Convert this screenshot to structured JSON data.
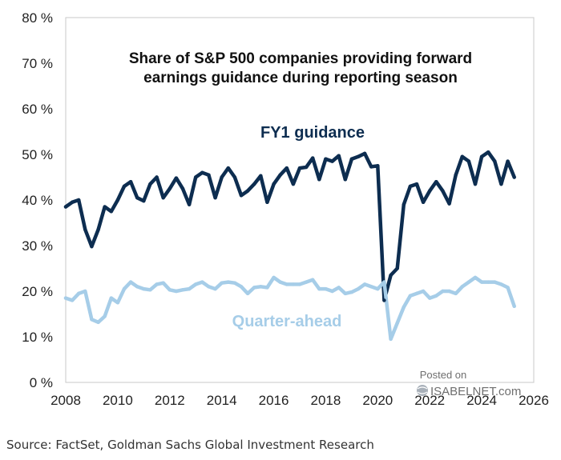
{
  "chart_data": {
    "type": "line",
    "title": [
      "Share of S&P 500 companies providing forward",
      "earnings guidance during reporting season"
    ],
    "xlabel": "",
    "ylabel": "",
    "xlim": [
      2008,
      2026
    ],
    "ylim": [
      0,
      80
    ],
    "x_ticks": [
      "2008",
      "2010",
      "2012",
      "2014",
      "2016",
      "2018",
      "2020",
      "2022",
      "2024",
      "2026"
    ],
    "y_ticks": [
      "0 %",
      "10 %",
      "20 %",
      "30 %",
      "40 %",
      "50 %",
      "60 %",
      "70 %",
      "80 %"
    ],
    "grid": false,
    "series": [
      {
        "name": "FY1 guidance",
        "color": "#0d2d50",
        "x": [
          2008.0,
          2008.25,
          2008.5,
          2008.75,
          2009.0,
          2009.25,
          2009.5,
          2009.75,
          2010.0,
          2010.25,
          2010.5,
          2010.75,
          2011.0,
          2011.25,
          2011.5,
          2011.75,
          2012.0,
          2012.25,
          2012.5,
          2012.75,
          2013.0,
          2013.25,
          2013.5,
          2013.75,
          2014.0,
          2014.25,
          2014.5,
          2014.75,
          2015.0,
          2015.25,
          2015.5,
          2015.75,
          2016.0,
          2016.25,
          2016.5,
          2016.75,
          2017.0,
          2017.25,
          2017.5,
          2017.75,
          2018.0,
          2018.25,
          2018.5,
          2018.75,
          2019.0,
          2019.25,
          2019.5,
          2019.75,
          2020.0,
          2020.25,
          2020.5,
          2020.75,
          2021.0,
          2021.25,
          2021.5,
          2021.75,
          2022.0,
          2022.25,
          2022.5,
          2022.75,
          2023.0,
          2023.25,
          2023.5,
          2023.75,
          2024.0,
          2024.25,
          2024.5,
          2024.75,
          2025.0,
          2025.25
        ],
        "values": [
          38.5,
          39.5,
          40.0,
          33.5,
          29.8,
          33.5,
          38.5,
          37.5,
          40.0,
          43.0,
          44.0,
          40.5,
          39.8,
          43.5,
          45.0,
          40.5,
          42.5,
          44.8,
          42.5,
          39.0,
          45.0,
          46.0,
          45.5,
          40.5,
          45.0,
          47.0,
          45.0,
          41.0,
          42.0,
          43.5,
          45.3,
          39.5,
          43.5,
          45.5,
          47.0,
          43.5,
          47.0,
          47.2,
          49.2,
          44.5,
          49.0,
          48.5,
          49.7,
          44.5,
          49.0,
          49.5,
          50.2,
          47.3,
          47.5,
          18.0,
          23.5,
          25.0,
          39.0,
          43.0,
          43.5,
          39.5,
          42.0,
          44.0,
          42.0,
          39.2,
          45.5,
          49.5,
          48.5,
          43.5,
          49.5,
          50.5,
          48.5,
          43.5,
          48.5,
          45.0
        ]
      },
      {
        "name": "Quarter-ahead",
        "color": "#a6cde8",
        "x": [
          2008.0,
          2008.25,
          2008.5,
          2008.75,
          2009.0,
          2009.25,
          2009.5,
          2009.75,
          2010.0,
          2010.25,
          2010.5,
          2010.75,
          2011.0,
          2011.25,
          2011.5,
          2011.75,
          2012.0,
          2012.25,
          2012.5,
          2012.75,
          2013.0,
          2013.25,
          2013.5,
          2013.75,
          2014.0,
          2014.25,
          2014.5,
          2014.75,
          2015.0,
          2015.25,
          2015.5,
          2015.75,
          2016.0,
          2016.25,
          2016.5,
          2016.75,
          2017.0,
          2017.25,
          2017.5,
          2017.75,
          2018.0,
          2018.25,
          2018.5,
          2018.75,
          2019.0,
          2019.25,
          2019.5,
          2019.75,
          2020.0,
          2020.25,
          2020.5,
          2020.75,
          2021.0,
          2021.25,
          2021.5,
          2021.75,
          2022.0,
          2022.25,
          2022.5,
          2022.75,
          2023.0,
          2023.25,
          2023.5,
          2023.75,
          2024.0,
          2024.25,
          2024.5,
          2024.75,
          2025.0,
          2025.25
        ],
        "values": [
          18.5,
          18.0,
          19.5,
          20.0,
          13.8,
          13.2,
          14.5,
          18.5,
          17.5,
          20.5,
          22.0,
          21.0,
          20.5,
          20.3,
          21.5,
          21.8,
          20.3,
          20.0,
          20.3,
          20.5,
          21.5,
          22.0,
          21.0,
          20.5,
          21.8,
          22.0,
          21.8,
          21.0,
          19.5,
          20.8,
          21.0,
          20.8,
          23.0,
          22.0,
          21.5,
          21.5,
          21.5,
          22.0,
          22.5,
          20.5,
          20.5,
          20.0,
          20.8,
          19.5,
          19.8,
          20.5,
          21.5,
          21.0,
          20.5,
          22.0,
          9.5,
          13.0,
          16.5,
          19.0,
          19.5,
          20.0,
          18.5,
          19.0,
          20.0,
          20.0,
          19.5,
          21.0,
          22.0,
          23.0,
          22.0,
          22.0,
          22.0,
          21.5,
          20.8,
          16.7
        ]
      }
    ],
    "annotations": [
      {
        "text": "FY1 guidance",
        "series": "FY1 guidance"
      },
      {
        "text": "Quarter-ahead",
        "series": "Quarter-ahead"
      }
    ]
  },
  "watermark": {
    "line1": "Posted on",
    "line2": "ISABELNET.com"
  },
  "source": "Source: FactSet, Goldman Sachs Global Investment Research"
}
